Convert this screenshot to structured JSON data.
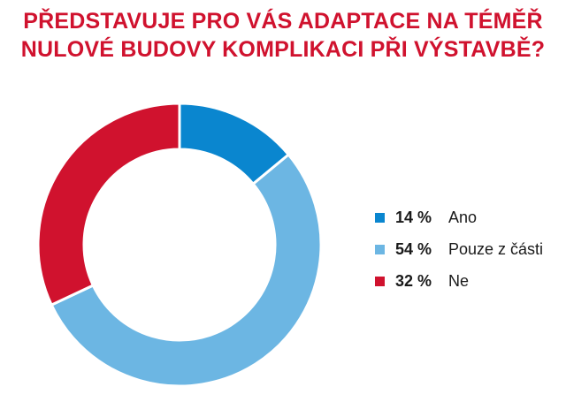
{
  "title": {
    "line1": "PŘEDSTAVUJE PRO VÁS ADAPTACE NA TÉMĚŘ",
    "line2": "NULOVÉ BUDOVY KOMPLIKACI PŘI VÝSTAVBĚ?"
  },
  "chart_data": {
    "type": "pie",
    "title": "PŘEDSTAVUJE PRO VÁS ADAPTACE NA TÉMĚŘ NULOVÉ BUDOVY KOMPLIKACI PŘI VÝSTAVBĚ?",
    "donut": true,
    "legend_position": "right",
    "series": [
      {
        "name": "Ano",
        "value": 14,
        "value_label": "14 %",
        "color": "#0a86cf"
      },
      {
        "name": "Pouze z části",
        "value": 54,
        "value_label": "54 %",
        "color": "#6cb6e3"
      },
      {
        "name": "Ne",
        "value": 32,
        "value_label": "32 %",
        "color": "#d0122e"
      }
    ]
  },
  "colors": {
    "title": "#d0122e",
    "text": "#1a1a1a"
  }
}
